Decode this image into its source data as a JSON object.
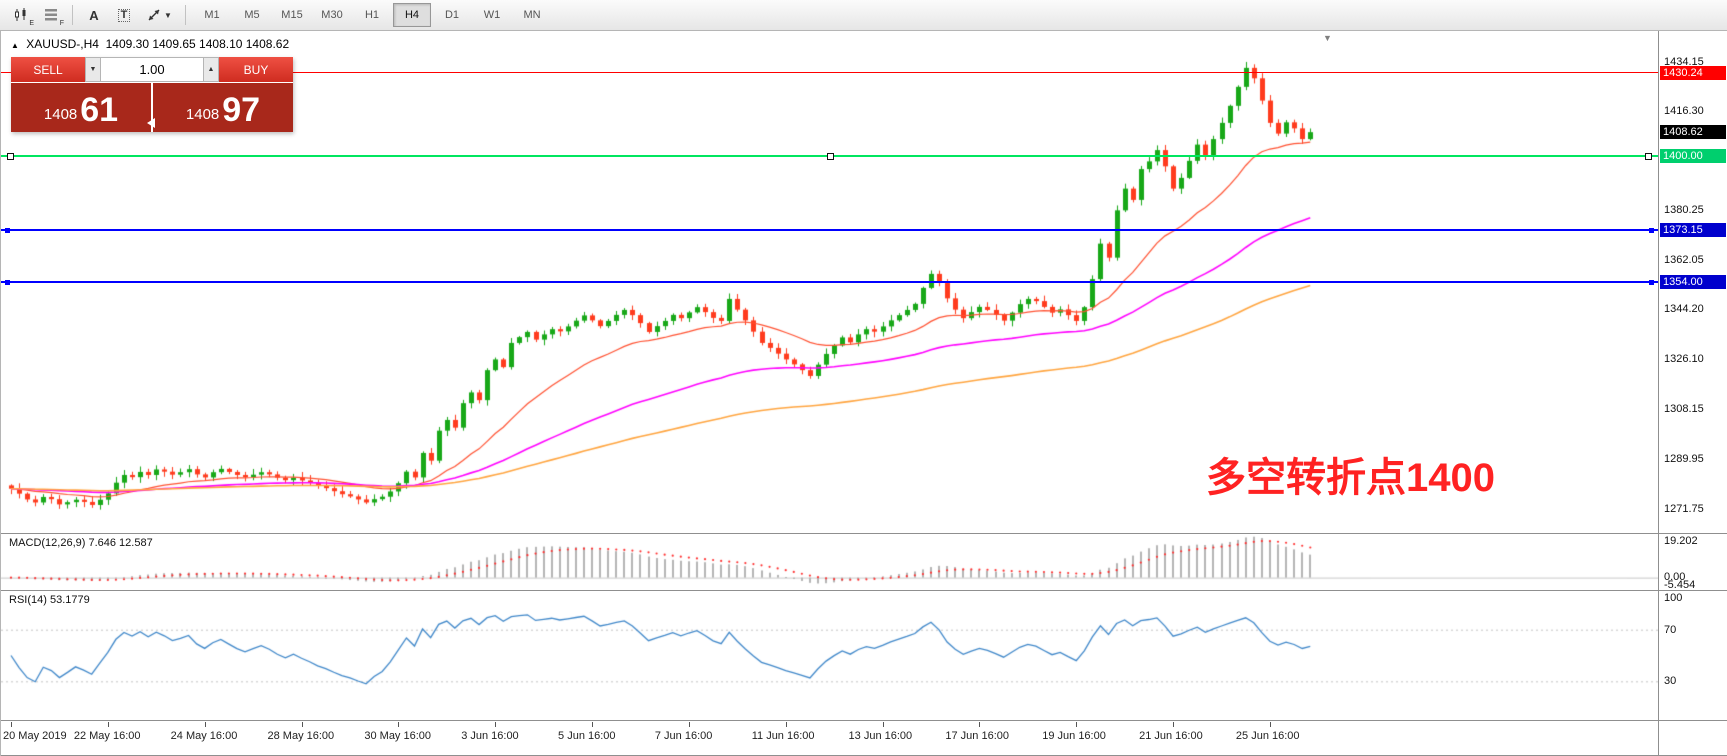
{
  "toolbar": {
    "icons": [
      {
        "name": "candlestick-chart-icon",
        "sub": "E"
      },
      {
        "name": "bar-list-icon",
        "sub": "F"
      },
      {
        "name": "font-tool-icon",
        "glyph": "A"
      },
      {
        "name": "text-label-tool-icon",
        "glyph": "T"
      },
      {
        "name": "cursor-tool-icon"
      }
    ],
    "timeframes": [
      "M1",
      "M5",
      "M15",
      "M30",
      "H1",
      "H4",
      "D1",
      "W1",
      "MN"
    ],
    "active_timeframe": "H4"
  },
  "header": {
    "symbol": "XAUUSD-,H4",
    "values": "1409.30 1409.65 1408.10 1408.62"
  },
  "trade_panel": {
    "sell_label": "SELL",
    "buy_label": "BUY",
    "volume": "1.00",
    "sell_price": {
      "big_prefix": "1408",
      "big_digits": "61"
    },
    "buy_price": {
      "big_prefix": "1408",
      "big_digits": "97"
    }
  },
  "price_axis": {
    "view_max": 1445.4,
    "view_min": 1262.9,
    "ticks": [
      "1434.15",
      "1416.30",
      "1380.25",
      "1362.05",
      "1344.20",
      "1326.10",
      "1308.15",
      "1289.95",
      "1271.75"
    ]
  },
  "badges": [
    {
      "name": "resistance-price-badge",
      "text": "1430.24",
      "price": 1430.24,
      "bg": "#ff0000",
      "fg": "#ffffff"
    },
    {
      "name": "current-price-badge",
      "text": "1408.62",
      "price": 1408.62,
      "bg": "#000000",
      "fg": "#ffffff"
    },
    {
      "name": "pivot-price-badge",
      "text": "1400.00",
      "price": 1400.0,
      "bg": "#00cf6e",
      "fg": "#ffffff"
    },
    {
      "name": "support1-price-badge",
      "text": "1373.15",
      "price": 1373.15,
      "bg": "#0000cd",
      "fg": "#ffffff"
    },
    {
      "name": "support2-price-badge",
      "text": "1354.00",
      "price": 1354.0,
      "bg": "#0000cd",
      "fg": "#ffffff"
    }
  ],
  "annotation": {
    "text": "多空转折点1400",
    "color": "#ff2222"
  },
  "macd_panel": {
    "label": "MACD(12,26,9) 7.646 12.587",
    "axis_ticks": [
      "19.202",
      "0.00",
      "-5.454"
    ]
  },
  "rsi_panel": {
    "label": "RSI(14) 53.1779",
    "axis_ticks": [
      "100",
      "70",
      "30"
    ]
  },
  "time_axis": [
    "20 May 2019",
    "22 May 16:00",
    "24 May 16:00",
    "28 May 16:00",
    "30 May 16:00",
    "3 Jun 16:00",
    "5 Jun 16:00",
    "7 Jun 16:00",
    "11 Jun 16:00",
    "13 Jun 16:00",
    "17 Jun 16:00",
    "19 Jun 16:00",
    "21 Jun 16:00",
    "25 Jun 16:00"
  ],
  "colors": {
    "up": "#18a818",
    "down": "#ff3b1e",
    "ma_fast": "#ff5030",
    "ma_mid": "#ff00ff",
    "ma_slow": "#ffa540",
    "macd_hist": "#b4b4b4",
    "macd_signal": "#ff3030",
    "macd_zero": "#c8c8c8",
    "rsi_line": "#3f87c9",
    "rsi_level": "#c4c4c4",
    "hline_red": "#ff0000",
    "hline_green": "#00e65f",
    "hline_blue": "#0000ff"
  },
  "chart_data": {
    "type": "candlestick",
    "title": "XAUUSD- H4",
    "symbol": "XAUUSD-",
    "timeframe": "H4",
    "x_start": "20 May 2019",
    "x_end": "26 Jun 2019",
    "ohlc_header": {
      "open": 1409.3,
      "high": 1409.65,
      "low": 1408.1,
      "close": 1408.62
    },
    "closes": [
      1279.0,
      1277.2,
      1275.1,
      1274.0,
      1276.0,
      1275.2,
      1273.3,
      1274.1,
      1275.0,
      1274.2,
      1273.1,
      1275.0,
      1277.3,
      1281.2,
      1284.0,
      1283.2,
      1285.1,
      1284.0,
      1286.0,
      1285.2,
      1284.1,
      1285.0,
      1286.1,
      1284.2,
      1283.1,
      1285.0,
      1286.2,
      1285.1,
      1284.0,
      1283.2,
      1284.1,
      1285.0,
      1284.2,
      1283.0,
      1282.1,
      1283.0,
      1282.0,
      1281.1,
      1280.0,
      1279.2,
      1278.1,
      1277.0,
      1276.2,
      1275.1,
      1274.0,
      1275.2,
      1276.1,
      1278.0,
      1281.0,
      1285.2,
      1283.1,
      1292.0,
      1289.2,
      1300.1,
      1304.0,
      1301.2,
      1310.1,
      1314.0,
      1311.2,
      1322.1,
      1326.0,
      1323.2,
      1332.0,
      1334.1,
      1336.0,
      1333.2,
      1335.1,
      1337.0,
      1336.2,
      1338.0,
      1340.1,
      1342.0,
      1340.2,
      1338.1,
      1340.0,
      1342.2,
      1344.0,
      1342.1,
      1339.2,
      1336.0,
      1338.1,
      1340.0,
      1342.2,
      1341.0,
      1343.1,
      1345.0,
      1343.2,
      1341.1,
      1340.0,
      1348.0,
      1344.1,
      1340.2,
      1336.1,
      1332.0,
      1330.2,
      1328.1,
      1326.0,
      1324.2,
      1322.1,
      1320.0,
      1324.1,
      1328.0,
      1331.1,
      1334.0,
      1332.2,
      1335.1,
      1337.0,
      1336.1,
      1338.0,
      1340.2,
      1342.1,
      1344.0,
      1346.2,
      1352.0,
      1357.1,
      1354.0,
      1348.2,
      1344.1,
      1341.0,
      1343.2,
      1345.1,
      1344.0,
      1342.2,
      1340.1,
      1343.0,
      1346.1,
      1348.0,
      1347.2,
      1345.1,
      1343.0,
      1344.2,
      1342.1,
      1340.0,
      1345.0,
      1355.2,
      1368.1,
      1363.0,
      1380.2,
      1388.1,
      1384.0,
      1395.2,
      1398.0,
      1402.1,
      1396.2,
      1388.1,
      1392.0,
      1398.2,
      1404.1,
      1400.0,
      1406.1,
      1412.0,
      1418.2,
      1425.1,
      1432.0,
      1428.2,
      1420.1,
      1412.0,
      1408.1,
      1412.2,
      1410.0,
      1406.1,
      1408.62
    ],
    "h_lines": [
      {
        "price": 1430.24,
        "color_key": "hline_red",
        "width": 1,
        "selected": false
      },
      {
        "price": 1400.0,
        "color_key": "hline_green",
        "width": 2,
        "selected": true
      },
      {
        "price": 1373.15,
        "color_key": "hline_blue",
        "width": 2,
        "selected": false
      },
      {
        "price": 1354.0,
        "color_key": "hline_blue",
        "width": 2,
        "selected": false
      }
    ],
    "moving_averages": [
      {
        "period": 20,
        "color_key": "ma_fast"
      },
      {
        "period": 60,
        "color_key": "ma_mid"
      },
      {
        "period": 120,
        "color_key": "ma_slow"
      }
    ],
    "macd": {
      "fast": 12,
      "slow": 26,
      "signal": 9,
      "current": 7.646,
      "current_signal": 12.587,
      "scale_max": 19.202,
      "scale_min": -5.454
    },
    "rsi": {
      "period": 14,
      "current": 53.1779,
      "levels": [
        70,
        30
      ],
      "scale_max": 100,
      "scale_min": 0
    }
  }
}
